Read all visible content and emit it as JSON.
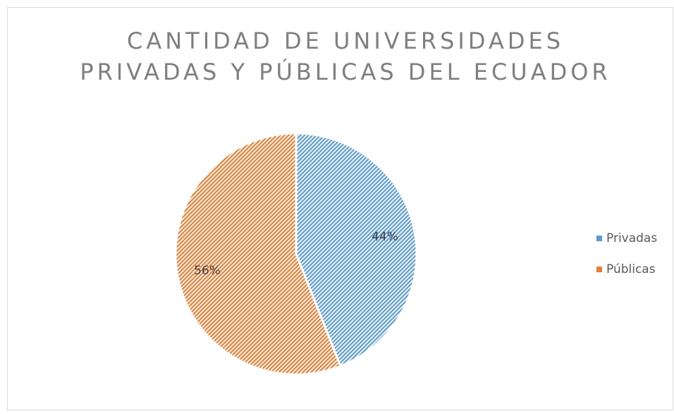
{
  "chart_data": {
    "type": "pie",
    "title": [
      "CANTIDAD DE UNIVERSIDADES",
      "PRIVADAS Y PÚBLICAS DEL ECUADOR"
    ],
    "categories": [
      "Privadas",
      "Públicas"
    ],
    "values": [
      44,
      56
    ],
    "value_labels": [
      "44%",
      "56%"
    ],
    "colors": [
      "#5b9bd5",
      "#ed7d31"
    ],
    "legend": "right"
  }
}
